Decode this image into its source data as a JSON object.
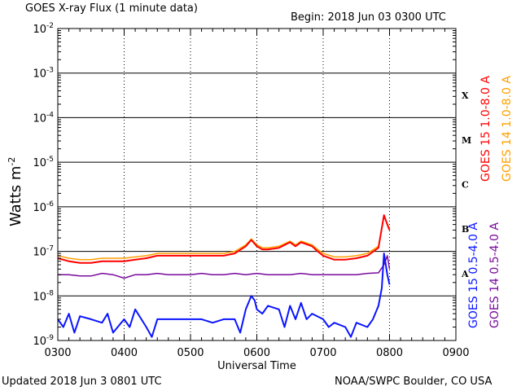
{
  "header": {
    "title": "GOES X-ray Flux (1 minute data)",
    "begin": "Begin: 2018 Jun 03 0300 UTC"
  },
  "footer": {
    "updated": "Updated 2018 Jun  3 0801 UTC",
    "credit": "NOAA/SWPC Boulder, CO USA"
  },
  "colors": {
    "goes15_long": "#ff0000",
    "goes14_long": "#ffa000",
    "goes15_short": "#0a14ff",
    "goes14_short": "#7a0a9c",
    "grid": "#000000"
  },
  "chart_data": {
    "type": "line",
    "title": "GOES X-ray Flux (1 minute data)",
    "xlabel": "Universal Time",
    "ylabel_base": "Watts m",
    "ylabel_exp": "-2",
    "yscale": "log",
    "ylim": [
      1e-09,
      0.01
    ],
    "xlim": [
      "0300",
      "0900"
    ],
    "x_ticks": [
      "0300",
      "0400",
      "0500",
      "0600",
      "0700",
      "0800",
      "0900"
    ],
    "y_ticks": [
      {
        "value": 1e-09,
        "base": "10",
        "exp": "-9"
      },
      {
        "value": 1e-08,
        "base": "10",
        "exp": "-8"
      },
      {
        "value": 1e-07,
        "base": "10",
        "exp": "-7"
      },
      {
        "value": 1e-06,
        "base": "10",
        "exp": "-6"
      },
      {
        "value": 1e-05,
        "base": "10",
        "exp": "-5"
      },
      {
        "value": 0.0001,
        "base": "10",
        "exp": "-4"
      },
      {
        "value": 0.001,
        "base": "10",
        "exp": "-3"
      },
      {
        "value": 0.01,
        "base": "10",
        "exp": "-2"
      }
    ],
    "grid": true,
    "flare_classes": [
      {
        "label": "X",
        "value": 0.0001
      },
      {
        "label": "M",
        "value": 1e-05
      },
      {
        "label": "C",
        "value": 1e-06
      },
      {
        "label": "B",
        "value": 1e-07
      },
      {
        "label": "A",
        "value": 1e-08
      }
    ],
    "legend_right": [
      {
        "label": "GOES 15 1.0-8.0 A",
        "color": "#ff0000"
      },
      {
        "label": "GOES 14 1.0-8.0 A",
        "color": "#ffa000"
      }
    ],
    "legend_right2": [
      {
        "label": "GOES 15 0.5-4.0 A",
        "color": "#0a14ff"
      },
      {
        "label": "GOES 14 0.5-4.0 A",
        "color": "#7a0a9c"
      }
    ],
    "series": [
      {
        "name": "GOES 15 1.0-8.0 A",
        "color": "#ff0000",
        "x": [
          "0300",
          "0310",
          "0320",
          "0330",
          "0340",
          "0350",
          "0400",
          "0410",
          "0420",
          "0430",
          "0440",
          "0450",
          "0500",
          "0510",
          "0520",
          "0530",
          "0540",
          "0550",
          "0555",
          "0600",
          "0605",
          "0610",
          "0620",
          "0630",
          "0635",
          "0640",
          "0650",
          "0655",
          "0700",
          "0710",
          "0720",
          "0730",
          "0740",
          "0750",
          "0755",
          "0758",
          "0800"
        ],
        "values": [
          7e-08,
          6e-08,
          5.5e-08,
          5.5e-08,
          6e-08,
          6e-08,
          6e-08,
          6.5e-08,
          7e-08,
          8e-08,
          8e-08,
          8e-08,
          8e-08,
          8e-08,
          8e-08,
          8e-08,
          9e-08,
          1.3e-07,
          1.8e-07,
          1.3e-07,
          1.1e-07,
          1.1e-07,
          1.2e-07,
          1.6e-07,
          1.3e-07,
          1.6e-07,
          1.3e-07,
          1e-07,
          8e-08,
          6.5e-08,
          6.5e-08,
          7e-08,
          8e-08,
          1.2e-07,
          6.5e-07,
          4e-07,
          3e-07
        ]
      },
      {
        "name": "GOES 14 1.0-8.0 A",
        "color": "#ffa000",
        "x": [
          "0300",
          "0310",
          "0320",
          "0330",
          "0340",
          "0350",
          "0400",
          "0410",
          "0420",
          "0430",
          "0440",
          "0450",
          "0500",
          "0510",
          "0520",
          "0530",
          "0540",
          "0550",
          "0555",
          "0600",
          "0605",
          "0610",
          "0620",
          "0630",
          "0635",
          "0640",
          "0650",
          "0655",
          "0700",
          "0710",
          "0720",
          "0730",
          "0740",
          "0750",
          "0755",
          "0758",
          "0800"
        ],
        "values": [
          8e-08,
          7e-08,
          6.5e-08,
          6.5e-08,
          7e-08,
          7e-08,
          7e-08,
          7.5e-08,
          8e-08,
          9e-08,
          9e-08,
          9e-08,
          9e-08,
          9e-08,
          9e-08,
          9e-08,
          1e-07,
          1.4e-07,
          1.9e-07,
          1.4e-07,
          1.2e-07,
          1.2e-07,
          1.3e-07,
          1.7e-07,
          1.4e-07,
          1.7e-07,
          1.4e-07,
          1.1e-07,
          9e-08,
          7.5e-08,
          7.5e-08,
          8e-08,
          9e-08,
          1.3e-07,
          6e-07,
          4.2e-07,
          3.2e-07
        ]
      },
      {
        "name": "GOES 15 0.5-4.0 A",
        "color": "#0a14ff",
        "x": [
          "0300",
          "0305",
          "0310",
          "0315",
          "0320",
          "0330",
          "0340",
          "0345",
          "0350",
          "0400",
          "0405",
          "0410",
          "0420",
          "0425",
          "0430",
          "0440",
          "0450",
          "0500",
          "0510",
          "0520",
          "0530",
          "0540",
          "0545",
          "0550",
          "0555",
          "0558",
          "0600",
          "0605",
          "0610",
          "0620",
          "0625",
          "0630",
          "0635",
          "0640",
          "0645",
          "0650",
          "0700",
          "0705",
          "0710",
          "0720",
          "0725",
          "0730",
          "0740",
          "0745",
          "0750",
          "0753",
          "0755",
          "0758",
          "0800"
        ],
        "values": [
          3e-09,
          2e-09,
          4e-09,
          1.5e-09,
          3.5e-09,
          3e-09,
          2.5e-09,
          4e-09,
          1.5e-09,
          3e-09,
          2e-09,
          5e-09,
          2e-09,
          1.2e-09,
          3e-09,
          3e-09,
          3e-09,
          3e-09,
          3e-09,
          2.5e-09,
          3e-09,
          3e-09,
          1.5e-09,
          5e-09,
          1e-08,
          8e-09,
          5e-09,
          4e-09,
          6e-09,
          5e-09,
          2e-09,
          6e-09,
          3e-09,
          7e-09,
          3e-09,
          4e-09,
          3e-09,
          2e-09,
          2.5e-09,
          2e-09,
          1.2e-09,
          2.5e-09,
          2e-09,
          3e-09,
          6e-09,
          1.5e-08,
          9e-08,
          3e-08,
          1.8e-08
        ]
      },
      {
        "name": "GOES 14 0.5-4.0 A",
        "color": "#7a0a9c",
        "x": [
          "0300",
          "0310",
          "0320",
          "0330",
          "0340",
          "0350",
          "0400",
          "0410",
          "0420",
          "0430",
          "0440",
          "0450",
          "0500",
          "0510",
          "0520",
          "0530",
          "0540",
          "0550",
          "0600",
          "0610",
          "0620",
          "0630",
          "0640",
          "0650",
          "0700",
          "0710",
          "0720",
          "0730",
          "0740",
          "0750",
          "0755",
          "0758",
          "0800"
        ],
        "values": [
          3e-08,
          3e-08,
          2.8e-08,
          2.8e-08,
          3.2e-08,
          3e-08,
          2.5e-08,
          3e-08,
          3e-08,
          3.2e-08,
          3e-08,
          3e-08,
          3e-08,
          3.2e-08,
          3e-08,
          3e-08,
          3.2e-08,
          3e-08,
          3.2e-08,
          3e-08,
          3e-08,
          3e-08,
          3.2e-08,
          3e-08,
          3e-08,
          3e-08,
          3e-08,
          3e-08,
          3.2e-08,
          3.3e-08,
          5e-08,
          8e-08,
          4e-08
        ]
      }
    ]
  }
}
